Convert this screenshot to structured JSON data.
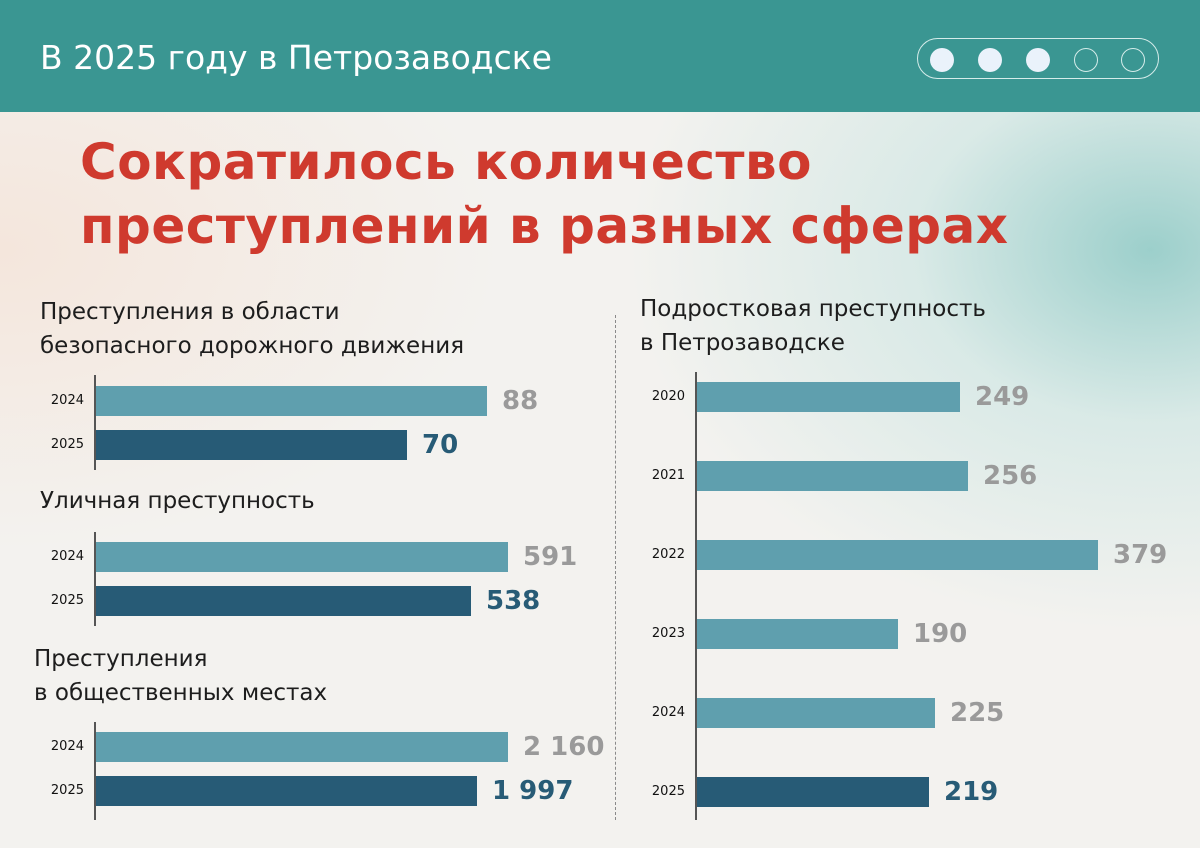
{
  "header": {
    "title": "В 2025 году в Петрозаводске",
    "pager": {
      "total": 5,
      "active": 3
    }
  },
  "headline": {
    "line1": "Сократилось количество",
    "line2": "преступлений в разных сферах"
  },
  "colors": {
    "header": "#3a9692",
    "title": "#cf3a2e",
    "bar_light": "#5f9fae",
    "bar_dark": "#275b76",
    "val_light": "#9a9a9a",
    "val_dark": "#275b76"
  },
  "chart_data": [
    {
      "type": "bar",
      "orientation": "horizontal",
      "title_lines": [
        "Преступления в области",
        "безопасного дорожного движения"
      ],
      "categories": [
        "2024",
        "2025"
      ],
      "values": [
        88,
        70
      ],
      "labels": [
        "88",
        "70"
      ]
    },
    {
      "type": "bar",
      "orientation": "horizontal",
      "title_lines": [
        "Уличная преступность"
      ],
      "categories": [
        "2024",
        "2025"
      ],
      "values": [
        591,
        538
      ],
      "labels": [
        "591",
        "538"
      ]
    },
    {
      "type": "bar",
      "orientation": "horizontal",
      "title_lines": [
        "Преступления",
        "в общественных местах"
      ],
      "categories": [
        "2024",
        "2025"
      ],
      "values": [
        2160,
        1997
      ],
      "labels": [
        "2 160",
        "1 997"
      ]
    },
    {
      "type": "bar",
      "orientation": "horizontal",
      "title_lines": [
        "Подростковая преступность",
        "в Петрозаводске"
      ],
      "categories": [
        "2020",
        "2021",
        "2022",
        "2023",
        "2024",
        "2025"
      ],
      "values": [
        249,
        256,
        379,
        190,
        225,
        219
      ],
      "labels": [
        "249",
        "256",
        "379",
        "190",
        "225",
        "219"
      ]
    }
  ]
}
